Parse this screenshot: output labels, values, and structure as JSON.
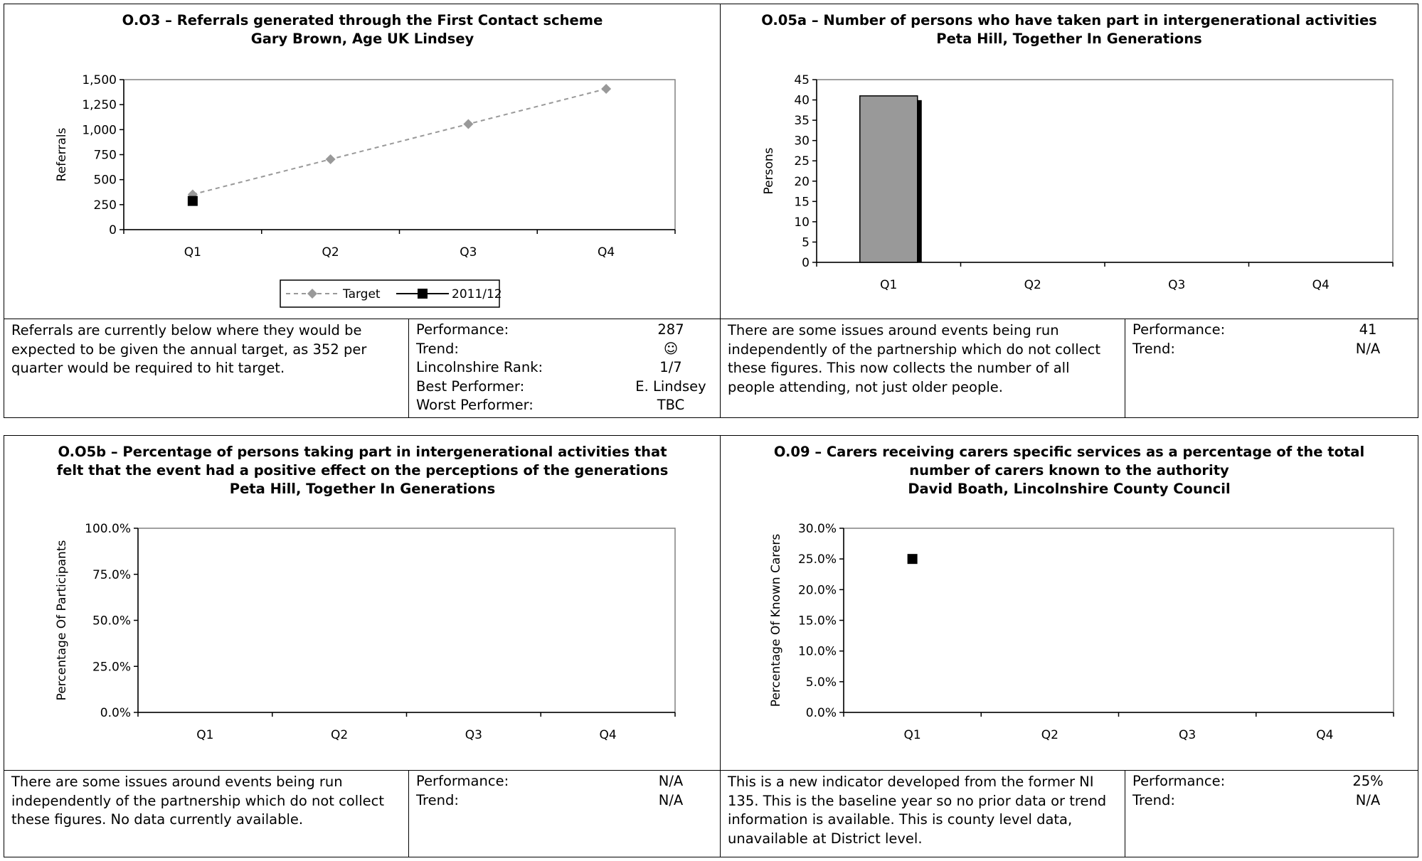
{
  "panels": {
    "o03": {
      "title_lines": [
        "O.O3 – Referrals generated through the First Contact scheme",
        "Gary Brown, Age UK Lindsey"
      ],
      "description": "Referrals are currently below where they would be expected to be given the annual target, as 352 per quarter would be required to hit target.",
      "perf": [
        {
          "label": "Performance:",
          "value": "287"
        },
        {
          "label": "Trend:",
          "value": "☺"
        },
        {
          "label": "Lincolnshire Rank:",
          "value": "1/7"
        },
        {
          "label": "Best Performer:",
          "value": "E. Lindsey"
        },
        {
          "label": "Worst Performer:",
          "value": "TBC"
        }
      ],
      "legend": {
        "target": "Target",
        "actual": "2011/12"
      }
    },
    "o05a": {
      "title_lines": [
        "O.05a – Number of persons who have taken part in intergenerational activities",
        "Peta Hill, Together In Generations"
      ],
      "description": "There are some issues around events being run independently of the partnership which do not collect these figures.  This now collects the number of all people attending, not just older people.",
      "perf": [
        {
          "label": "Performance:",
          "value": "41"
        },
        {
          "label": "Trend:",
          "value": "N/A"
        }
      ]
    },
    "o05b": {
      "title_lines": [
        "O.O5b – Percentage of persons taking part in intergenerational activities that",
        "felt that the event had a positive effect on the perceptions of the generations",
        "Peta Hill, Together In Generations"
      ],
      "description": "There are some issues around events being run independently of the partnership which do not collect these figures.  No data currently available.",
      "perf": [
        {
          "label": "Performance:",
          "value": "N/A"
        },
        {
          "label": "Trend:",
          "value": "N/A"
        }
      ]
    },
    "o09": {
      "title_lines": [
        "O.09 – Carers receiving carers specific services as a percentage of the total",
        "number of carers known to the authority",
        "David Boath, Lincolnshire County Council"
      ],
      "description": "This is a new indicator developed from the former NI 135.  This is the baseline year so no prior data or trend information is available.  This is county level data, unavailable at District level.",
      "perf": [
        {
          "label": "Performance:",
          "value": "25%"
        },
        {
          "label": "Trend:",
          "value": "N/A"
        }
      ]
    }
  },
  "chart_data": [
    {
      "id": "o03",
      "type": "line",
      "categories": [
        "Q1",
        "Q2",
        "Q3",
        "Q4"
      ],
      "ylabel": "Referrals",
      "ylim": [
        0,
        1500
      ],
      "yticks": [
        "0",
        "250",
        "500",
        "750",
        "1,000",
        "1,250",
        "1,500"
      ],
      "series": [
        {
          "name": "Target",
          "values": [
            352,
            704,
            1056,
            1408
          ],
          "color": "#999999",
          "style": "dashed",
          "marker": "diamond"
        },
        {
          "name": "2011/12",
          "values": [
            287,
            null,
            null,
            null
          ],
          "color": "#000000",
          "style": "solid",
          "marker": "square"
        }
      ],
      "legend": "bottom"
    },
    {
      "id": "o05a",
      "type": "bar",
      "categories": [
        "Q1",
        "Q2",
        "Q3",
        "Q4"
      ],
      "ylabel": "Persons",
      "ylim": [
        0,
        45
      ],
      "yticks": [
        "0",
        "5",
        "10",
        "15",
        "20",
        "25",
        "30",
        "35",
        "40",
        "45"
      ],
      "series": [
        {
          "values": [
            41,
            null,
            null,
            null
          ],
          "color": "#999999"
        }
      ]
    },
    {
      "id": "o05b",
      "type": "scatter",
      "categories": [
        "Q1",
        "Q2",
        "Q3",
        "Q4"
      ],
      "ylabel": "Percentage Of Participants",
      "ylim": [
        0,
        100
      ],
      "yticks": [
        "0.0%",
        "25.0%",
        "50.0%",
        "75.0%",
        "100.0%"
      ],
      "series": [
        {
          "values": [
            null,
            null,
            null,
            null
          ]
        }
      ]
    },
    {
      "id": "o09",
      "type": "scatter",
      "categories": [
        "Q1",
        "Q2",
        "Q3",
        "Q4"
      ],
      "ylabel": "Percentage Of Known Carers",
      "ylim": [
        0,
        30
      ],
      "yticks": [
        "0.0%",
        "5.0%",
        "10.0%",
        "15.0%",
        "20.0%",
        "25.0%",
        "30.0%"
      ],
      "series": [
        {
          "values": [
            25,
            null,
            null,
            null
          ],
          "color": "#000000",
          "marker": "square"
        }
      ]
    }
  ]
}
